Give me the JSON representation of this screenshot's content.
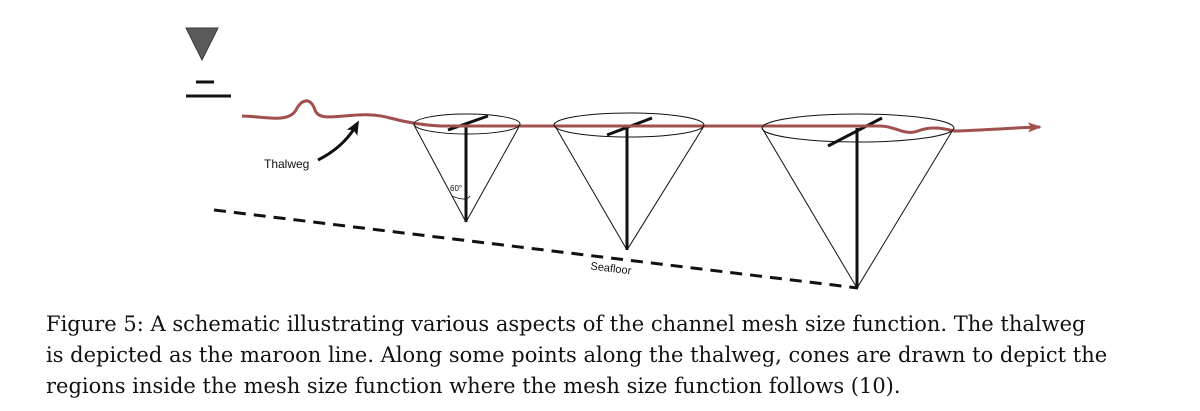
{
  "labels": {
    "thalweg": "Thalweg",
    "seafloor": "Seafloor",
    "angle": "60°"
  },
  "caption": {
    "line1": "Figure 5: A schematic illustrating various aspects of the channel mesh size function. The thalweg",
    "line2": "is depicted as the maroon line. Along some points along the thalweg, cones are drawn to depict the",
    "line3": "regions inside the mesh size function where the mesh size function follows (10)."
  },
  "colors": {
    "thalweg": "#a0504e",
    "ink": "#111111",
    "water_symbol": "#5a5a5a"
  }
}
